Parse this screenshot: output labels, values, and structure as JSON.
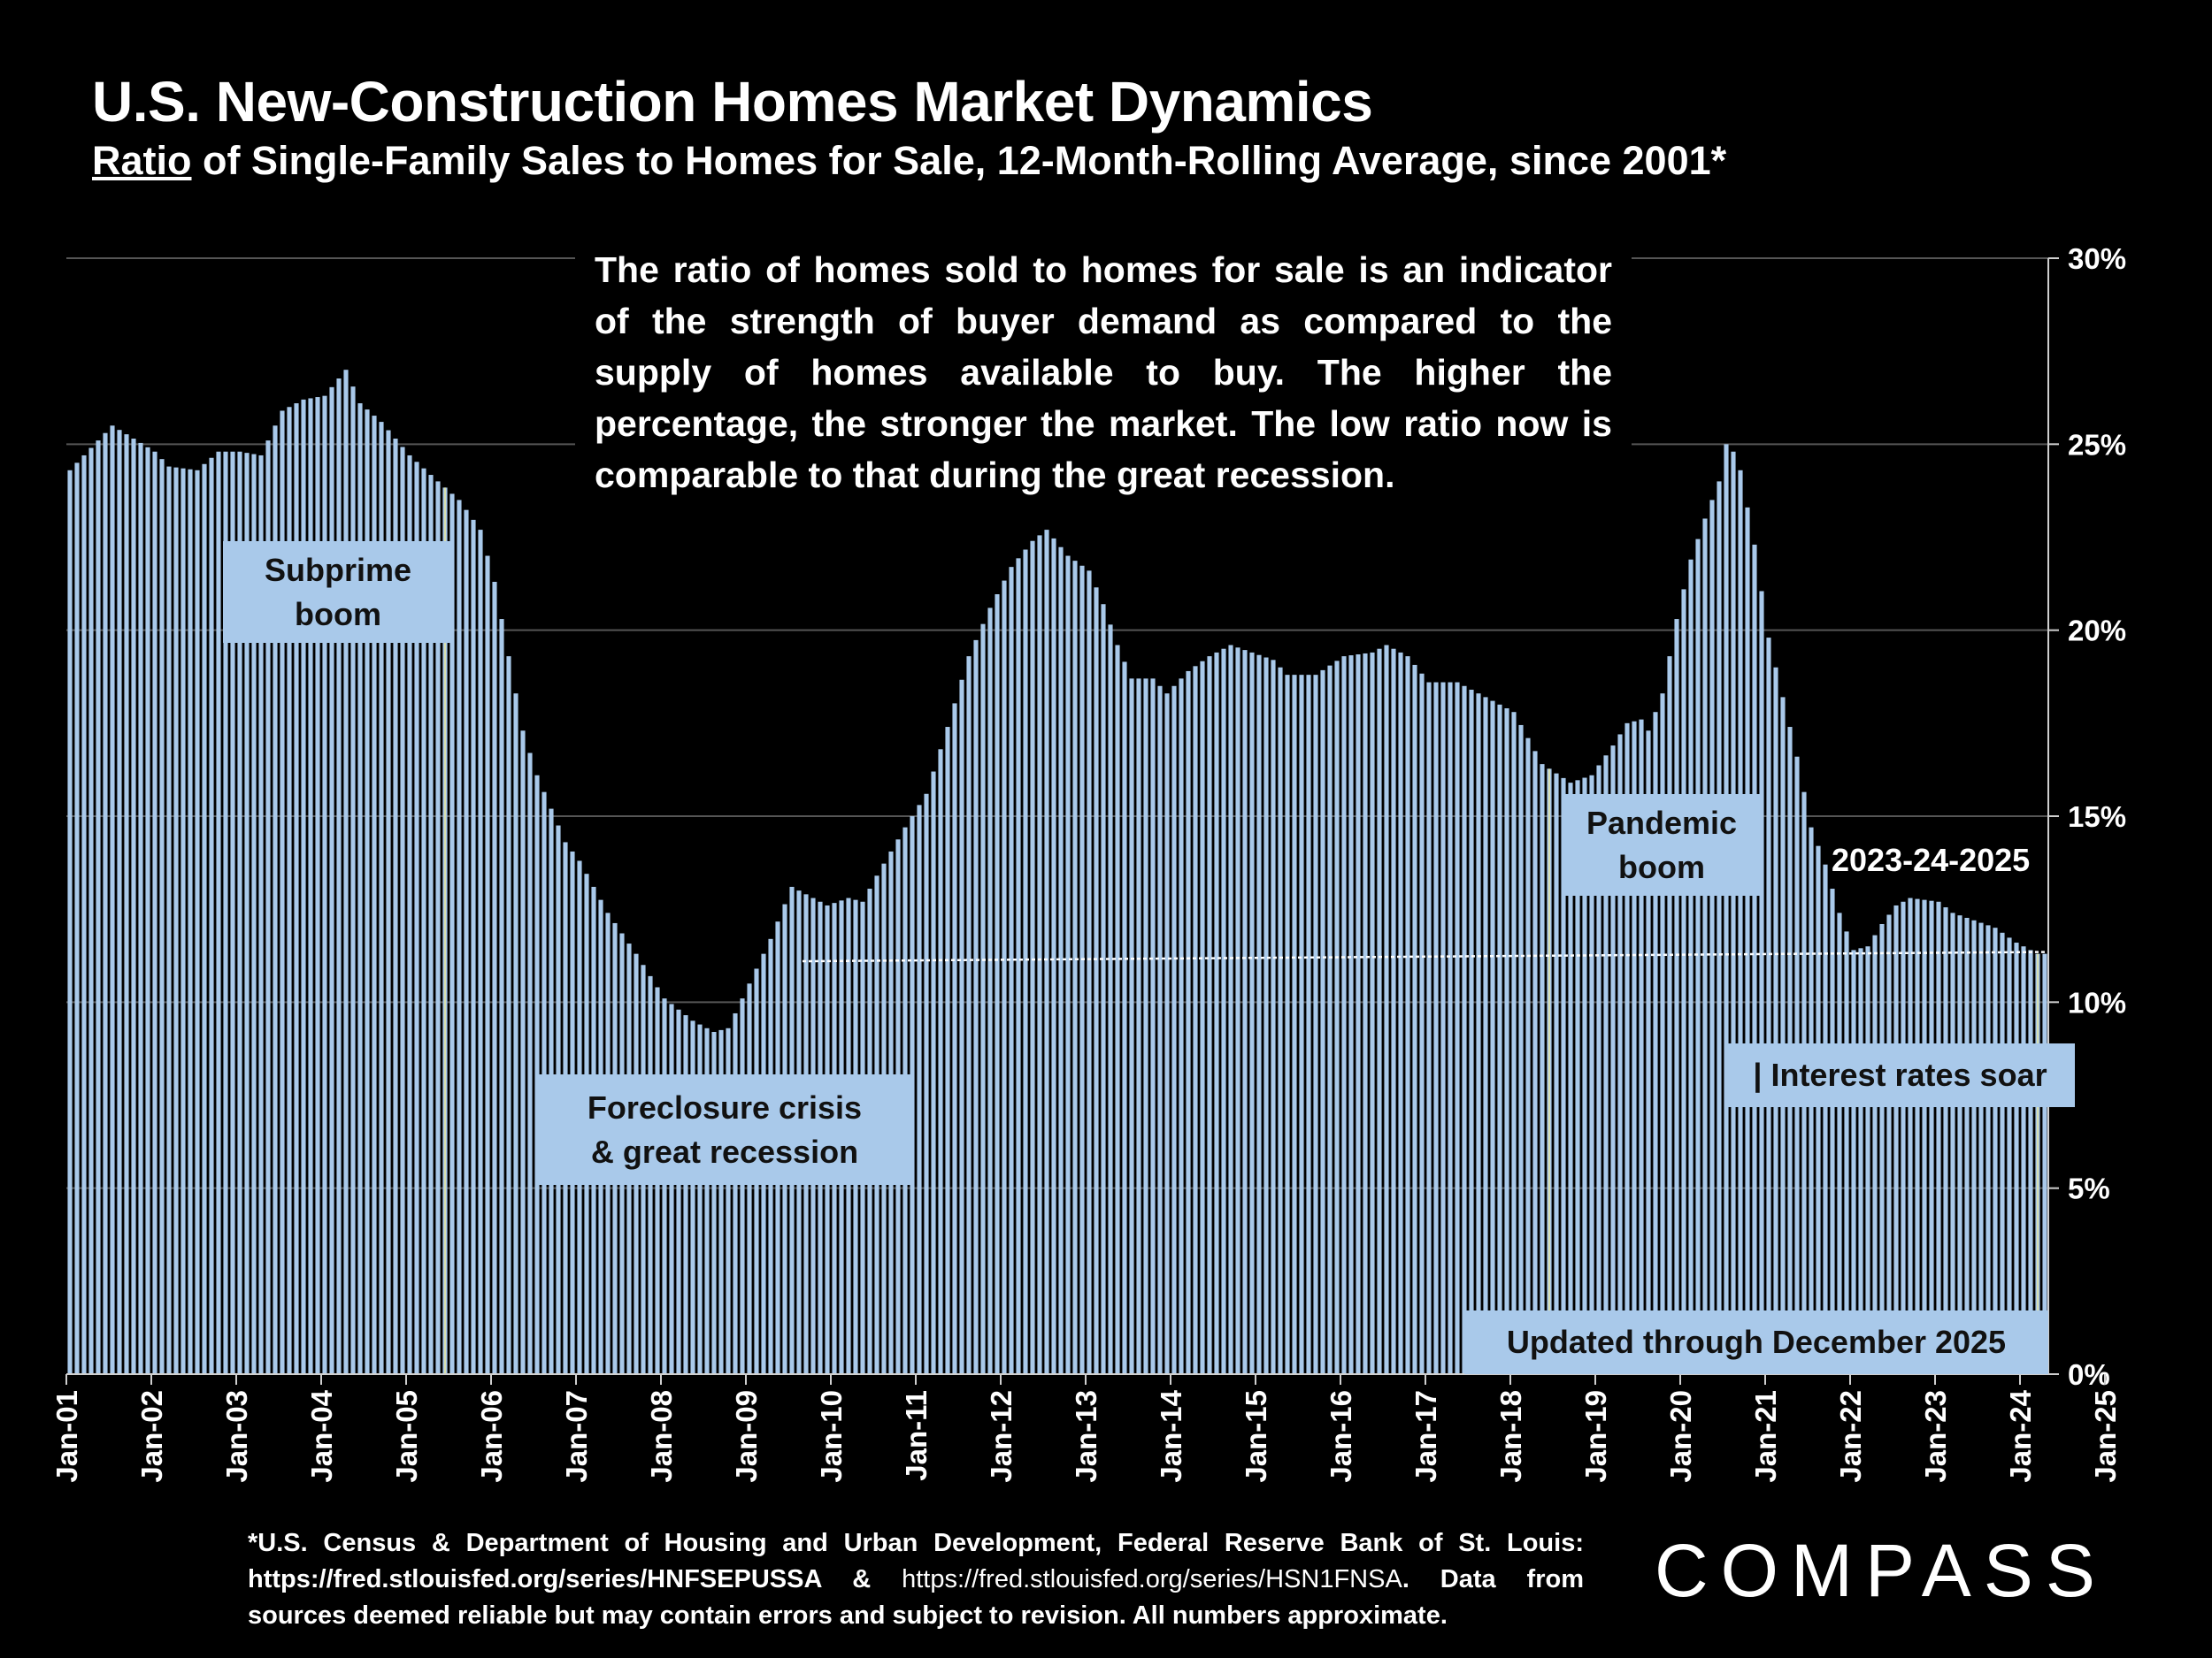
{
  "title": "U.S. New-Construction Homes Market Dynamics",
  "subtitle_underlined": "Ratio",
  "subtitle_rest": " of Single-Family Sales to Homes for Sale, 12-Month-Rolling Average, since 2001*",
  "note": "The ratio of homes sold to homes for sale is an indicator of the strength of buyer demand as compared to the supply of homes available to buy. The higher the percentage, the stronger the market. The low ratio now is comparable to that during the great recession.",
  "annotations": {
    "subprime": "Subprime\nboom",
    "foreclosure": "Foreclosure crisis\n& great recession",
    "pandemic": "Pandemic\nboom",
    "years_label": "2023-24-2025",
    "interest": "| Interest rates soar",
    "updated": "Updated through December 2025"
  },
  "footer_bold_1": "*U.S. Census & Department of Housing and Urban Development, Federal Reserve Bank of St. Louis: https://fred.stlouisfed.org/series/HNFSEPUSSA & ",
  "footer_light": "https://fred.stlouisfed.org/series/HSN1FNSA",
  "footer_bold_2": ". Data from sources deemed reliable but may contain errors and subject to revision. All numbers approximate.",
  "logo": "COMPASS",
  "colors": {
    "bar": "#a9c9ea",
    "background": "#000000",
    "grid": "#555555",
    "trend": "#ffffff"
  },
  "chart_data": {
    "type": "bar",
    "title": "U.S. New-Construction Homes Market Dynamics",
    "ylabel": "",
    "xlabel": "",
    "ylim": [
      0,
      30
    ],
    "y_ticks": [
      "0%",
      "5%",
      "10%",
      "15%",
      "20%",
      "25%",
      "30%"
    ],
    "x_ticks": [
      "Jan-01",
      "Jan-02",
      "Jan-03",
      "Jan-04",
      "Jan-05",
      "Jan-06",
      "Jan-07",
      "Jan-08",
      "Jan-09",
      "Jan-10",
      "Jan-11",
      "Jan-12",
      "Jan-13",
      "Jan-14",
      "Jan-15",
      "Jan-16",
      "Jan-17",
      "Jan-18",
      "Jan-19",
      "Jan-20",
      "Jan-21",
      "Jan-22",
      "Jan-23",
      "Jan-24",
      "Jan-25"
    ],
    "start": "2001-01",
    "frequency": "monthly",
    "anchors": [
      [
        0,
        24.3
      ],
      [
        6,
        25.5
      ],
      [
        12,
        24.8
      ],
      [
        14,
        24.4
      ],
      [
        18,
        24.3
      ],
      [
        21,
        24.8
      ],
      [
        24,
        24.8
      ],
      [
        27,
        24.7
      ],
      [
        30,
        25.9
      ],
      [
        33,
        26.2
      ],
      [
        36,
        26.3
      ],
      [
        39,
        27.0
      ],
      [
        41,
        26.1
      ],
      [
        44,
        25.6
      ],
      [
        48,
        24.7
      ],
      [
        52,
        24.0
      ],
      [
        55,
        23.5
      ],
      [
        58,
        22.7
      ],
      [
        60,
        21.3
      ],
      [
        62,
        19.3
      ],
      [
        64,
        17.3
      ],
      [
        66,
        16.1
      ],
      [
        68,
        15.2
      ],
      [
        70,
        14.3
      ],
      [
        72,
        13.8
      ],
      [
        76,
        12.4
      ],
      [
        80,
        11.3
      ],
      [
        84,
        10.1
      ],
      [
        88,
        9.5
      ],
      [
        91,
        9.2
      ],
      [
        93,
        9.3
      ],
      [
        96,
        10.5
      ],
      [
        99,
        11.7
      ],
      [
        102,
        13.1
      ],
      [
        104,
        12.9
      ],
      [
        107,
        12.6
      ],
      [
        110,
        12.8
      ],
      [
        112,
        12.7
      ],
      [
        114,
        13.4
      ],
      [
        118,
        14.7
      ],
      [
        121,
        15.6
      ],
      [
        124,
        17.4
      ],
      [
        127,
        19.3
      ],
      [
        130,
        20.6
      ],
      [
        133,
        21.7
      ],
      [
        136,
        22.4
      ],
      [
        138,
        22.7
      ],
      [
        141,
        22.0
      ],
      [
        144,
        21.6
      ],
      [
        146,
        20.7
      ],
      [
        148,
        19.6
      ],
      [
        150,
        18.7
      ],
      [
        153,
        18.7
      ],
      [
        155,
        18.3
      ],
      [
        158,
        18.9
      ],
      [
        161,
        19.3
      ],
      [
        164,
        19.6
      ],
      [
        167,
        19.4
      ],
      [
        170,
        19.2
      ],
      [
        172,
        18.8
      ],
      [
        176,
        18.8
      ],
      [
        180,
        19.3
      ],
      [
        184,
        19.4
      ],
      [
        186,
        19.6
      ],
      [
        189,
        19.3
      ],
      [
        192,
        18.6
      ],
      [
        196,
        18.6
      ],
      [
        200,
        18.2
      ],
      [
        204,
        17.8
      ],
      [
        206,
        17.1
      ],
      [
        208,
        16.4
      ],
      [
        212,
        15.9
      ],
      [
        215,
        16.1
      ],
      [
        218,
        16.9
      ],
      [
        220,
        17.5
      ],
      [
        222,
        17.6
      ],
      [
        223,
        17.3
      ],
      [
        225,
        18.3
      ],
      [
        227,
        20.3
      ],
      [
        229,
        21.9
      ],
      [
        231,
        23.0
      ],
      [
        233,
        24.0
      ],
      [
        234,
        25.0
      ],
      [
        235,
        24.8
      ],
      [
        236,
        24.3
      ],
      [
        237,
        23.3
      ],
      [
        238,
        22.3
      ],
      [
        240,
        19.8
      ],
      [
        242,
        18.2
      ],
      [
        244,
        16.6
      ],
      [
        246,
        14.7
      ],
      [
        248,
        13.7
      ],
      [
        250,
        12.4
      ],
      [
        252,
        11.4
      ],
      [
        254,
        11.5
      ],
      [
        256,
        12.1
      ],
      [
        258,
        12.6
      ],
      [
        260,
        12.8
      ],
      [
        264,
        12.7
      ],
      [
        266,
        12.4
      ],
      [
        269,
        12.2
      ],
      [
        272,
        12.0
      ],
      [
        275,
        11.6
      ],
      [
        278,
        11.3
      ],
      [
        279,
        11.3
      ]
    ],
    "trend_line": {
      "from_month": 104,
      "to_month": 279,
      "from_value": 11.1,
      "to_value": 11.35
    },
    "markers_months": [
      53,
      209,
      278
    ]
  }
}
